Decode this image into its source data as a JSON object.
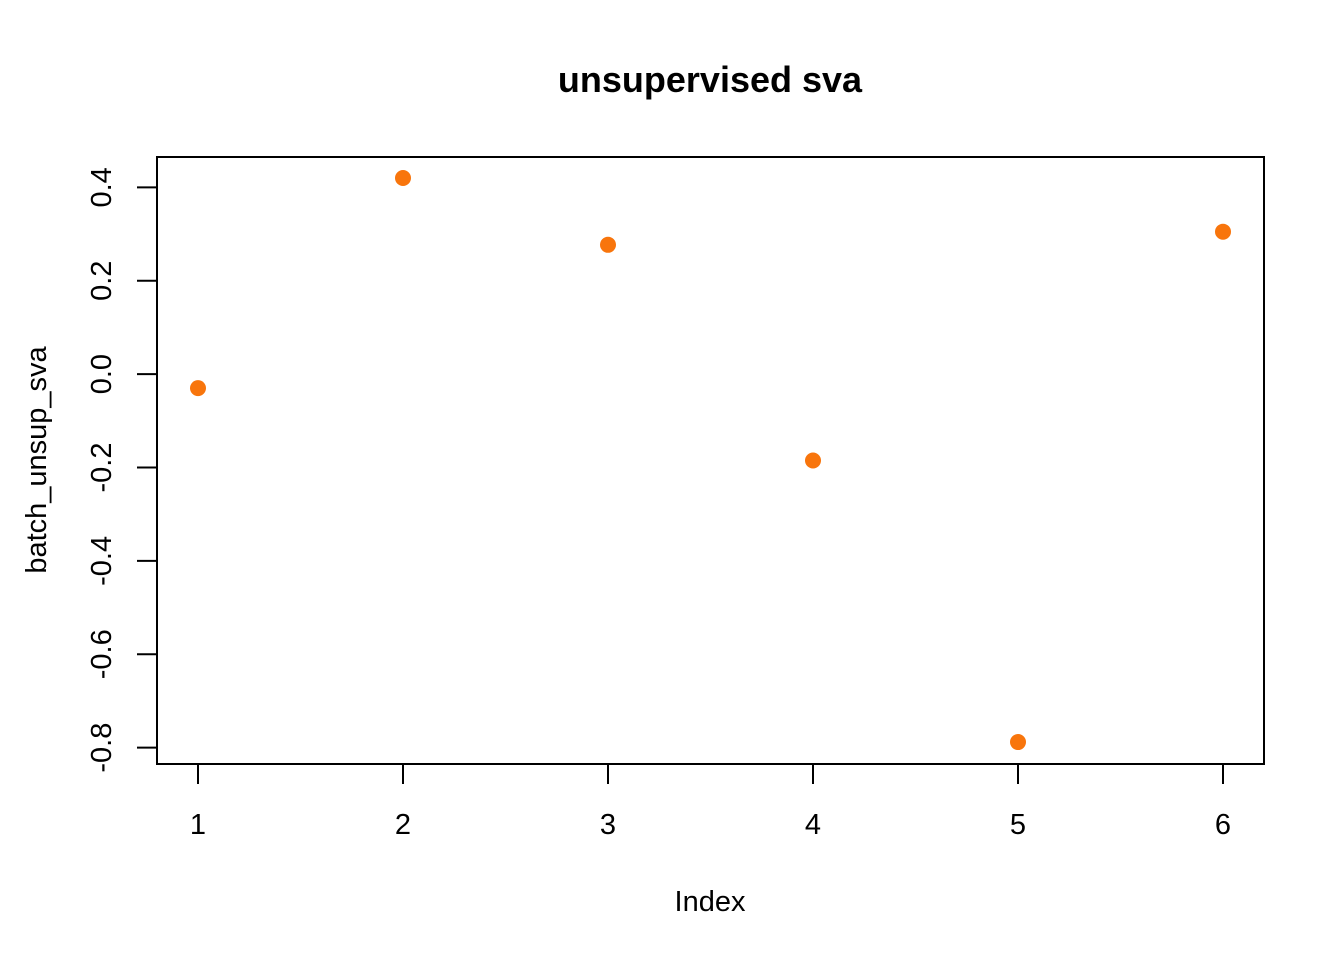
{
  "chart_data": {
    "type": "scatter",
    "title": "unsupervised sva",
    "xlabel": "Index",
    "ylabel": "batch_unsup_sva",
    "x": [
      1,
      2,
      3,
      4,
      5,
      6
    ],
    "y": [
      -0.03,
      0.42,
      0.277,
      -0.185,
      -0.788,
      0.305
    ],
    "xlim": [
      0.8,
      6.2
    ],
    "ylim": [
      -0.835,
      0.465
    ],
    "x_ticks": [
      1,
      2,
      3,
      4,
      5,
      6
    ],
    "x_tick_labels": [
      "1",
      "2",
      "3",
      "4",
      "5",
      "6"
    ],
    "y_ticks": [
      -0.8,
      -0.6,
      -0.4,
      -0.2,
      0.0,
      0.2,
      0.4
    ],
    "y_tick_labels": [
      "-0.8",
      "-0.6",
      "-0.4",
      "-0.2",
      "0.0",
      "0.2",
      "0.4"
    ],
    "point_color": "#F8750C",
    "grid": false,
    "legend": "none"
  }
}
